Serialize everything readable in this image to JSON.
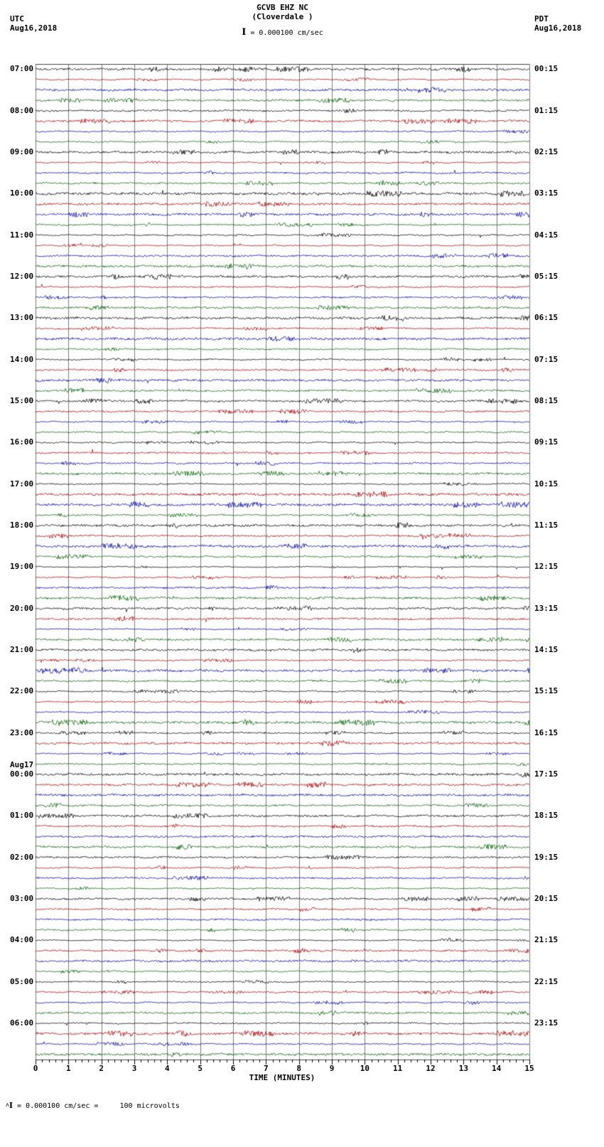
{
  "header": {
    "title": "GCVB EHZ NC",
    "subtitle": "(Cloverdale )",
    "scale_bar": "I",
    "scale_text": "= 0.000100 cm/sec",
    "left": {
      "tz": "UTC",
      "date": "Aug16,2018"
    },
    "right": {
      "tz": "PDT",
      "date": "Aug16,2018"
    }
  },
  "axis": {
    "title": "TIME (MINUTES)",
    "ticks": [
      "0",
      "1",
      "2",
      "3",
      "4",
      "5",
      "6",
      "7",
      "8",
      "9",
      "10",
      "11",
      "12",
      "13",
      "14",
      "15"
    ]
  },
  "footnote": {
    "caret": "ʌ",
    "bar": "I",
    "text": " = 0.000100 cm/sec =     100 microvolts"
  },
  "chart_data": {
    "type": "line",
    "subtype": "helicorder_seismogram",
    "station": "GCVB EHZ NC",
    "channel": "EHZ",
    "location_name": "Cloverdale",
    "start_utc": "Aug16,2018 07:00",
    "end_utc": "Aug17,2018 07:00",
    "timezone_left": "UTC",
    "timezone_right": "PDT",
    "minutes_per_line": 15,
    "lines_per_hour": 4,
    "total_lines": 96,
    "x_range_minutes": [
      0,
      15
    ],
    "grid": "vertical lines every 1 minute",
    "trace_colors": [
      "#000000",
      "#b00000",
      "#0000b0",
      "#006400"
    ],
    "utc_hour_labels": [
      "07:00",
      "08:00",
      "09:00",
      "10:00",
      "11:00",
      "12:00",
      "13:00",
      "14:00",
      "15:00",
      "16:00",
      "17:00",
      "18:00",
      "19:00",
      "20:00",
      "21:00",
      "22:00",
      "23:00",
      "00:00",
      "01:00",
      "02:00",
      "03:00",
      "04:00",
      "05:00",
      "06:00"
    ],
    "pdt_hour_labels": [
      "00:15",
      "01:15",
      "02:15",
      "03:15",
      "04:15",
      "05:15",
      "06:15",
      "07:15",
      "08:15",
      "09:15",
      "10:15",
      "11:15",
      "12:15",
      "13:15",
      "14:15",
      "15:15",
      "16:15",
      "17:15",
      "18:15",
      "19:15",
      "20:15",
      "21:15",
      "22:15",
      "23:15"
    ],
    "date_break": {
      "index": 17,
      "label": "Aug17"
    },
    "content": "continuous low-amplitude background seismic noise; no large events visible",
    "sensitivity": "0.000100 cm/sec = 100 microvolts"
  }
}
